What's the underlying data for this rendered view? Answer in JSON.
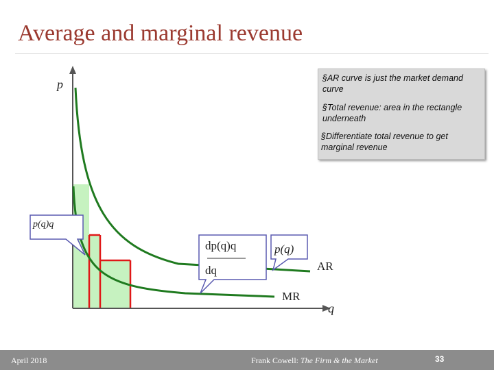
{
  "slide": {
    "title": "Average and marginal revenue"
  },
  "notes": [
    "§AR curve is just the market demand  curve",
    "§Total revenue: area in the rectangle underneath",
    "§Differentiate total revenue to get marginal revenue"
  ],
  "diagram": {
    "y_axis_label": "p",
    "x_axis_label": "q",
    "callout_revenue": "p(q)q",
    "callout_derivative_numerator": "dp(q)q",
    "callout_derivative_denominator": "dq",
    "callout_price": "p(q)",
    "curve_ar_label": "AR",
    "curve_mr_label": "MR",
    "colors": {
      "curve": "#1f7a1f",
      "rectangle_edge": "#e01818",
      "rectangle_fill": "#c6f2c0",
      "callout_fill": "#ffffff",
      "callout_edge": "#5a5ab0"
    }
  },
  "footer": {
    "date": "April 2018",
    "author": "Frank Cowell: ",
    "book": "The Firm & the Market",
    "page": "33"
  }
}
